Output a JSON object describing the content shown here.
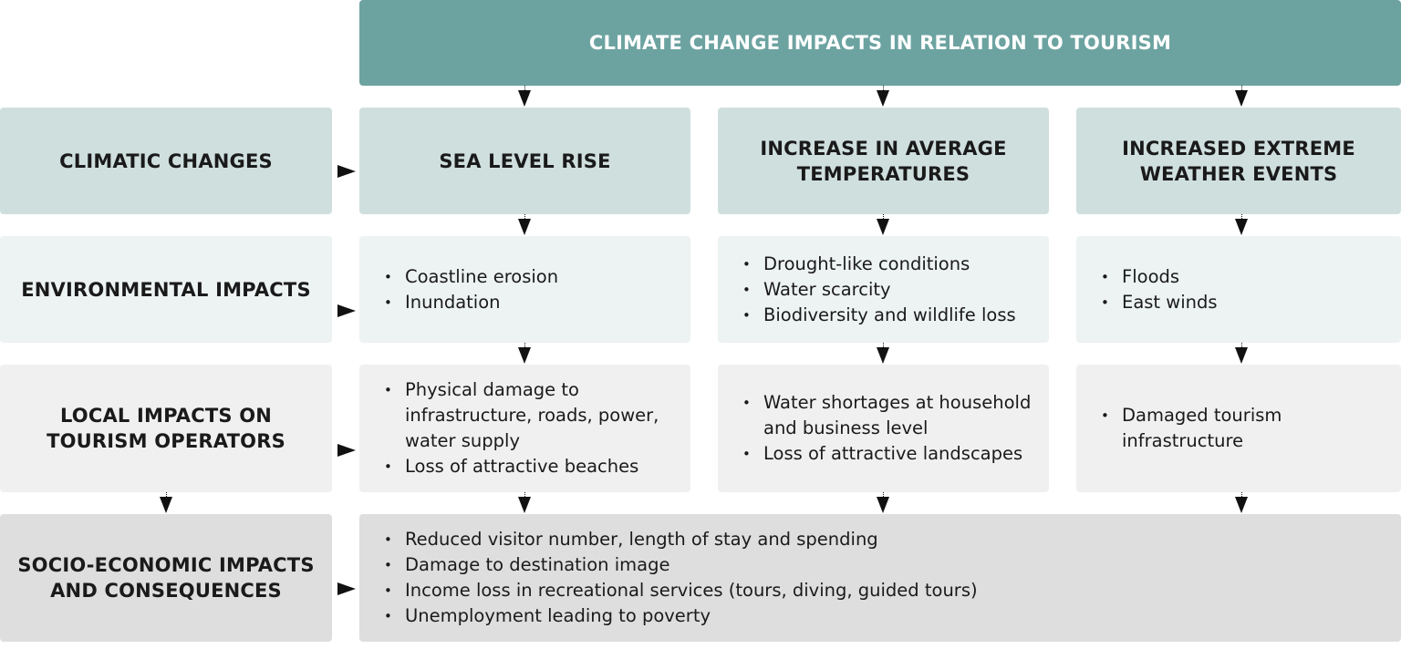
{
  "title": "CLIMATE CHANGE IMPACTS IN RELATION TO TOURISM",
  "rows": {
    "climatic": "CLIMATIC CHANGES",
    "environmental": "ENVIRONMENTAL IMPACTS",
    "local": "LOCAL IMPACTS ON TOURISM OPERATORS",
    "socio": "SOCIO-ECONOMIC IMPACTS AND CONSEQUENCES"
  },
  "columns": [
    {
      "name": "SEA LEVEL RISE",
      "environmental": [
        "Coastline erosion",
        "Inundation"
      ],
      "local": [
        "Physical damage to infrastructure, roads, power, water supply",
        "Loss of attractive beaches"
      ]
    },
    {
      "name": "INCREASE IN AVERAGE TEMPERATURES",
      "environmental": [
        "Drought-like conditions",
        "Water scarcity",
        "Biodiversity and wildlife loss"
      ],
      "local": [
        "Water shortages at household and business level",
        "Loss of attractive landscapes"
      ]
    },
    {
      "name": "INCREASED EXTREME WEATHER EVENTS",
      "environmental": [
        "Floods",
        "East winds"
      ],
      "local": [
        "Damaged tourism infrastructure"
      ]
    }
  ],
  "socio_economic": [
    "Reduced visitor number, length of stay and spending",
    "Damage to destination image",
    "Income loss in recreational services (tours, diving, guided tours)",
    "Unemployment leading to poverty"
  ],
  "colors": {
    "header": "#6ca3a1",
    "climatic_row": "#cfdfde",
    "environmental_row": "#edf2f2",
    "local_row": "#f0f0f0",
    "socio_row": "#dedede"
  }
}
